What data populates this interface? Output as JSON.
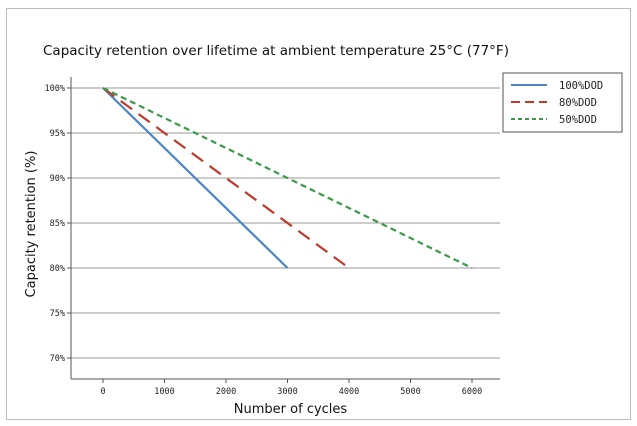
{
  "chart_data": {
    "type": "line",
    "title": "Capacity retention over lifetime at ambient temperature 25°C (77°F)",
    "xlabel": "Number of cycles",
    "ylabel": "Capacity retention (%)",
    "xlim": [
      0,
      6000
    ],
    "ylim": [
      70,
      100
    ],
    "x_ticks": [
      0,
      1000,
      2000,
      3000,
      4000,
      5000,
      6000
    ],
    "x_tick_labels": [
      "0",
      "1000",
      "2000",
      "3000",
      "4000",
      "5000",
      "6000"
    ],
    "y_ticks": [
      100,
      95,
      90,
      85,
      80,
      75,
      70
    ],
    "y_tick_labels": [
      "100%",
      "95%",
      "90%",
      "85%",
      "80%",
      "75%",
      "70%"
    ],
    "grid": "horizontal",
    "legend_position": "right",
    "series": [
      {
        "name": "100%DOD",
        "color": "#4a86c5",
        "style": "solid",
        "points": [
          [
            0,
            100
          ],
          [
            3000,
            80
          ]
        ]
      },
      {
        "name": "80%DOD",
        "color": "#c0392b",
        "style": "dashed",
        "points": [
          [
            0,
            100
          ],
          [
            4000,
            80
          ]
        ]
      },
      {
        "name": "50%DOD",
        "color": "#3a9a4a",
        "style": "dotted",
        "points": [
          [
            0,
            100
          ],
          [
            6000,
            80
          ]
        ]
      }
    ]
  }
}
